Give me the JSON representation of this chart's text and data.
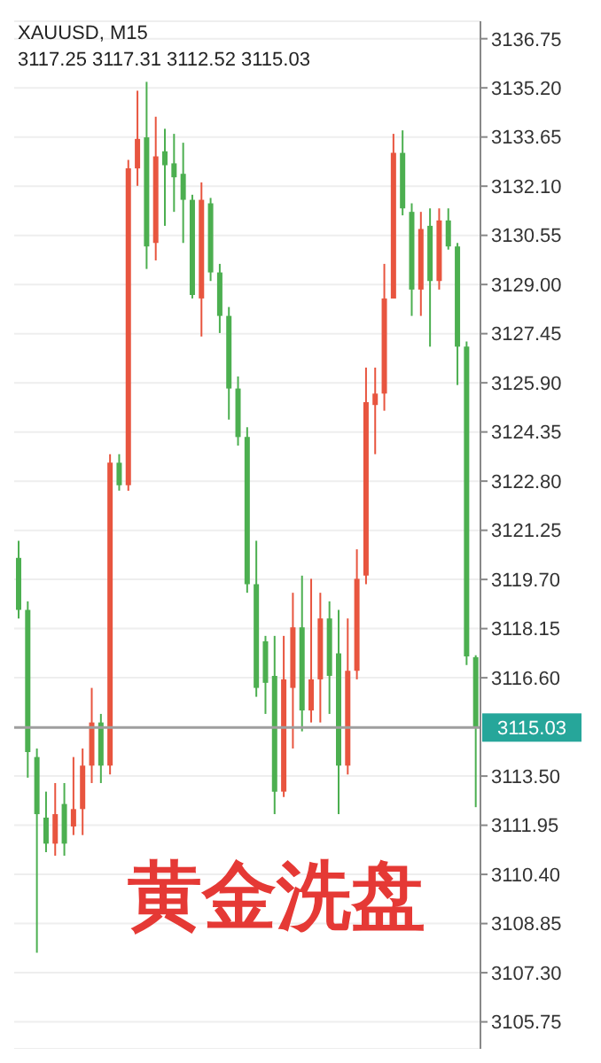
{
  "chart_data": {
    "type": "candlestick",
    "title": "XAUUSD, M15",
    "subtitle": "3117.25 3117.31 3112.52 3115.03",
    "annotations": [
      "黄金洗盘"
    ],
    "categories": [
      null,
      null,
      null,
      null,
      null,
      null,
      null,
      null,
      null,
      null,
      null,
      null,
      null,
      null,
      null,
      null,
      null,
      null,
      null,
      null,
      null,
      null,
      null,
      null,
      null,
      null,
      null,
      null,
      null,
      null,
      null,
      null,
      null,
      null,
      null,
      null,
      null,
      null,
      null,
      null,
      null,
      null,
      null,
      null,
      null,
      null,
      null,
      null,
      null,
      null,
      null
    ],
    "ohlc": [
      [
        3120.38,
        3120.92,
        3118.47,
        3118.74
      ],
      [
        3118.74,
        3119.01,
        3113.45,
        3114.26
      ],
      [
        3114.1,
        3114.37,
        3107.93,
        3112.3
      ],
      [
        3112.19,
        3113.01,
        3111.1,
        3111.37
      ],
      [
        3111.37,
        3113.28,
        3110.99,
        3112.3
      ],
      [
        3112.62,
        3113.28,
        3110.99,
        3111.37
      ],
      [
        3111.91,
        3114.1,
        3111.64,
        3112.46
      ],
      [
        3112.46,
        3114.37,
        3111.64,
        3113.83
      ],
      [
        3113.83,
        3116.28,
        3113.28,
        3115.19
      ],
      [
        3115.19,
        3115.46,
        3113.28,
        3113.83
      ],
      [
        3113.83,
        3123.65,
        3113.55,
        3123.38
      ],
      [
        3123.38,
        3123.65,
        3122.5,
        3122.67
      ],
      [
        3122.67,
        3132.93,
        3122.5,
        3132.66
      ],
      [
        3132.66,
        3135.11,
        3132.11,
        3133.59
      ],
      [
        3133.64,
        3135.39,
        3129.49,
        3130.2
      ],
      [
        3130.31,
        3134.29,
        3129.76,
        3133.04
      ],
      [
        3133.2,
        3133.91,
        3130.85,
        3132.76
      ],
      [
        3132.82,
        3133.75,
        3131.29,
        3132.38
      ],
      [
        3132.49,
        3133.47,
        3130.31,
        3131.67
      ],
      [
        3131.67,
        3131.83,
        3128.56,
        3128.67
      ],
      [
        3128.56,
        3132.22,
        3127.36,
        3131.67
      ],
      [
        3131.56,
        3131.73,
        3129.11,
        3129.38
      ],
      [
        3129.38,
        3129.65,
        3127.47,
        3128.01
      ],
      [
        3128.01,
        3128.29,
        3124.74,
        3125.72
      ],
      [
        3125.72,
        3126.1,
        3123.92,
        3124.19
      ],
      [
        3124.19,
        3124.5,
        3119.28,
        3119.55
      ],
      [
        3119.55,
        3120.92,
        3116.0,
        3116.28
      ],
      [
        3117.75,
        3117.92,
        3115.46,
        3116.44
      ],
      [
        3116.66,
        3117.92,
        3112.3,
        3113.01
      ],
      [
        3113.01,
        3117.92,
        3112.84,
        3116.55
      ],
      [
        3116.28,
        3119.28,
        3114.37,
        3118.19
      ],
      [
        3118.19,
        3119.82,
        3114.91,
        3115.57
      ],
      [
        3115.57,
        3119.72,
        3115.19,
        3116.55
      ],
      [
        3116.55,
        3119.28,
        3115.19,
        3118.47
      ],
      [
        3118.47,
        3119.01,
        3115.46,
        3116.66
      ],
      [
        3117.37,
        3118.74,
        3112.3,
        3113.83
      ],
      [
        3113.83,
        3118.47,
        3113.55,
        3116.82
      ],
      [
        3116.82,
        3120.65,
        3116.55,
        3119.72
      ],
      [
        3119.82,
        3126.38,
        3119.55,
        3125.29
      ],
      [
        3125.2,
        3126.38,
        3123.65,
        3125.56
      ],
      [
        3125.56,
        3129.65,
        3125.02,
        3128.56
      ],
      [
        3128.56,
        3133.75,
        3128.56,
        3133.15
      ],
      [
        3133.15,
        3133.86,
        3131.18,
        3131.4
      ],
      [
        3131.29,
        3131.56,
        3128.01,
        3128.84
      ],
      [
        3128.84,
        3131.29,
        3128.01,
        3130.75
      ],
      [
        3130.85,
        3131.4,
        3127.04,
        3129.11
      ],
      [
        3129.11,
        3131.4,
        3128.84,
        3131.02
      ],
      [
        3131.02,
        3131.4,
        3130.1,
        3130.2
      ],
      [
        3130.2,
        3130.31,
        3125.83,
        3127.04
      ],
      [
        3127.04,
        3127.2,
        3117.0,
        3117.27
      ],
      [
        3117.25,
        3117.31,
        3112.52,
        3115.03
      ]
    ],
    "colors": [
      "#4caf50",
      "#4caf50",
      "#4caf50",
      "#4caf50",
      "#e8553f",
      "#4caf50",
      "#e8553f",
      "#e8553f",
      "#e8553f",
      "#4caf50",
      "#e8553f",
      "#4caf50",
      "#e8553f",
      "#e8553f",
      "#4caf50",
      "#e8553f",
      "#4caf50",
      "#4caf50",
      "#4caf50",
      "#4caf50",
      "#e8553f",
      "#4caf50",
      "#4caf50",
      "#4caf50",
      "#4caf50",
      "#4caf50",
      "#4caf50",
      "#4caf50",
      "#4caf50",
      "#e8553f",
      "#e8553f",
      "#4caf50",
      "#e8553f",
      "#e8553f",
      "#4caf50",
      "#4caf50",
      "#e8553f",
      "#e8553f",
      "#e8553f",
      "#e8553f",
      "#e8553f",
      "#e8553f",
      "#4caf50",
      "#4caf50",
      "#e8553f",
      "#4caf50",
      "#e8553f",
      "#4caf50",
      "#4caf50",
      "#4caf50",
      "#4caf50"
    ],
    "ylim": [
      3104.9,
      3137.3
    ],
    "yticks": [
      3136.75,
      {
        "value": 3135.2,
        "label": "3135.20"
      },
      3133.65,
      {
        "value": 3132.1,
        "label": "3132.10"
      },
      3130.55,
      {
        "value": 3129,
        "label": "3129.00"
      },
      3127.45,
      {
        "value": 3125.9,
        "label": "3125.90"
      },
      3124.35,
      {
        "value": 3122.8,
        "label": "3122.80"
      },
      3121.25,
      {
        "value": 3119.7,
        "label": "3119.70"
      },
      3118.15,
      {
        "value": 3116.6,
        "label": "3116.60"
      },
      {
        "value": 3113.5,
        "label": "3113.50"
      },
      3111.95,
      {
        "value": 3110.4,
        "label": "3110.40"
      },
      3108.85,
      {
        "value": 3107.3,
        "label": "3107.30"
      },
      3105.75
    ],
    "ref_lines": [
      {
        "axis": "y",
        "value": 3115.03,
        "label": "3115.03",
        "color": "#9e9e9e"
      }
    ],
    "grid": "y"
  }
}
